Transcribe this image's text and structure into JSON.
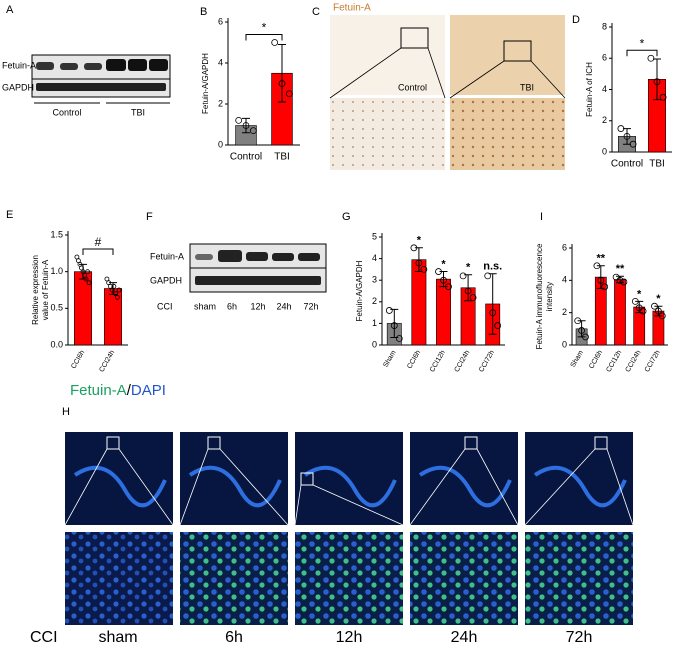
{
  "panels": {
    "A": {
      "letter": "A",
      "rows": [
        "Fetuin-A",
        "GAPDH"
      ],
      "groups": [
        "Control",
        "TBI"
      ]
    },
    "C": {
      "letter": "C",
      "title": "Fetuin-A",
      "groups": [
        "Control",
        "TBI"
      ]
    },
    "F": {
      "letter": "F",
      "rows": [
        "Fetuin-A",
        "GAPDH"
      ],
      "group": "CCI",
      "lanes": [
        "sham",
        "6h",
        "12h",
        "24h",
        "72h"
      ]
    },
    "H": {
      "letter": "H",
      "title": [
        "Fetuin-A",
        "/",
        "DAPI"
      ],
      "group": "CCI",
      "columns": [
        "sham",
        "6h",
        "12h",
        "24h",
        "72h"
      ]
    }
  },
  "chart_data": [
    {
      "type": "bar",
      "panel": "B",
      "ylabel": "Fetuin-A/GAPDH",
      "categories": [
        "Control",
        "TBI"
      ],
      "values": [
        0.95,
        3.5
      ],
      "errors": [
        0.35,
        1.4
      ],
      "points": [
        [
          1.2,
          0.95,
          0.7
        ],
        [
          5.0,
          3.0,
          2.5
        ]
      ],
      "colors": [
        "#808080",
        "#ff0000"
      ],
      "ylim": [
        0,
        6
      ],
      "yticks": [
        0,
        2,
        4,
        6
      ],
      "comparison": "*"
    },
    {
      "type": "bar",
      "panel": "D",
      "ylabel": "Fetuin-A of ICH",
      "categories": [
        "Control",
        "TBI"
      ],
      "values": [
        1.0,
        4.65
      ],
      "errors": [
        0.5,
        1.3
      ],
      "points": [
        [
          1.5,
          1.0,
          0.5
        ],
        [
          6.0,
          4.5,
          3.5
        ]
      ],
      "colors": [
        "#808080",
        "#ff0000"
      ],
      "ylim": [
        0,
        8
      ],
      "yticks": [
        0,
        2,
        4,
        6,
        8
      ],
      "comparison": "*"
    },
    {
      "type": "bar",
      "panel": "E",
      "ylabel": [
        "Relative expression",
        "value of Fetuin-A"
      ],
      "categories": [
        "CCI6h",
        "CCI24h"
      ],
      "values": [
        1.0,
        0.77
      ],
      "errors": [
        0.1,
        0.08
      ],
      "points": [
        [
          1.2,
          1.15,
          1.1,
          1.05,
          1.0,
          0.95,
          0.9,
          1.0,
          0.85
        ],
        [
          0.9,
          0.85,
          0.8,
          0.75,
          0.8,
          0.7,
          0.65,
          0.75
        ]
      ],
      "colors": [
        "#ff0000",
        "#ff0000"
      ],
      "ylim": [
        0,
        1.5
      ],
      "yticks": [
        {
          "value": 0,
          "label": "0.0"
        },
        0.5,
        {
          "value": 1,
          "label": "1.0"
        },
        1.5
      ],
      "comparison": "#"
    },
    {
      "type": "bar",
      "panel": "G",
      "ylabel": "Fetuin-A/GAPDH",
      "categories": [
        "Sham",
        "CCI6h",
        "CCI12h",
        "CCI24h",
        "CCI72h"
      ],
      "values": [
        1.0,
        3.95,
        3.05,
        2.65,
        1.9
      ],
      "errors": [
        0.65,
        0.55,
        0.35,
        0.6,
        1.4
      ],
      "points": [
        [
          1.6,
          0.9,
          0.3
        ],
        [
          4.5,
          3.8,
          3.5
        ],
        [
          3.4,
          3.0,
          2.7
        ],
        [
          3.2,
          2.5,
          2.2
        ],
        [
          3.2,
          1.5,
          0.9
        ]
      ],
      "colors": [
        "#808080",
        "#ff0000",
        "#ff0000",
        "#ff0000",
        "#ff0000"
      ],
      "ylim": [
        0,
        5
      ],
      "yticks": [
        0,
        1,
        2,
        3,
        4,
        5
      ],
      "annotations": [
        null,
        "*",
        "*",
        "*",
        "n.s."
      ]
    },
    {
      "type": "bar",
      "panel": "I",
      "ylabel": [
        "Fetuin-A immunofluorescence",
        "intensity"
      ],
      "categories": [
        "Sham",
        "CCI6h",
        "CCI12h",
        "CCI24h",
        "CCI72h"
      ],
      "values": [
        1.0,
        4.2,
        4.05,
        2.35,
        2.1
      ],
      "errors": [
        0.5,
        0.7,
        0.2,
        0.35,
        0.3
      ],
      "points": [
        [
          1.5,
          0.9,
          0.5
        ],
        [
          4.9,
          4.0,
          3.6
        ],
        [
          4.2,
          4.0,
          3.9
        ],
        [
          2.7,
          2.3,
          2.1
        ],
        [
          2.4,
          2.1,
          1.8
        ]
      ],
      "colors": [
        "#808080",
        "#ff0000",
        "#ff0000",
        "#ff0000",
        "#ff0000"
      ],
      "ylim": [
        0,
        6
      ],
      "yticks": [
        0,
        2,
        4,
        6
      ],
      "annotations": [
        null,
        "**",
        "**",
        "*",
        "*"
      ]
    }
  ]
}
